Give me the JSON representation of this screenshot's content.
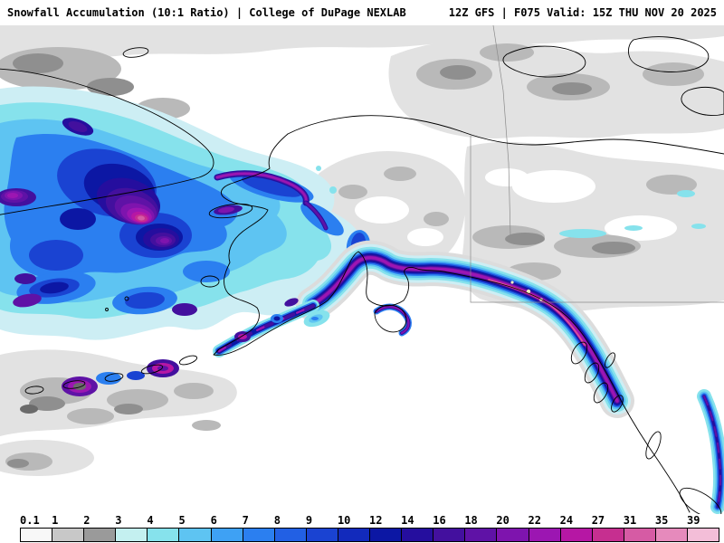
{
  "header": {
    "left": "Snowfall Accumulation (10:1 Ratio) | College of DuPage NEXLAB",
    "right": "12Z GFS | F075 Valid: 15Z THU NOV 20 2025"
  },
  "chart_data": {
    "type": "heatmap",
    "title": "Snowfall Accumulation (10:1 Ratio)",
    "source": "College of DuPage NEXLAB",
    "model_run": "12Z GFS",
    "forecast_hour": "F075",
    "valid_time": "15Z THU NOV 20 2025",
    "region": "Alaska, Bering Sea, Gulf of Alaska, western Canada",
    "legend_position": "bottom",
    "colorbar_values": [
      "0.1",
      "1",
      "2",
      "3",
      "4",
      "5",
      "6",
      "7",
      "8",
      "9",
      "10",
      "12",
      "14",
      "16",
      "18",
      "20",
      "22",
      "24",
      "27",
      "31",
      "35",
      "39"
    ]
  },
  "colorbar": {
    "stops": [
      {
        "label": "0.1",
        "color": "#f8f8f8"
      },
      {
        "label": "1",
        "color": "#c8c8c8"
      },
      {
        "label": "2",
        "color": "#9a9a9a"
      },
      {
        "label": "3",
        "color": "#c4f0f0"
      },
      {
        "label": "4",
        "color": "#86e2ec"
      },
      {
        "label": "5",
        "color": "#5ec4f2"
      },
      {
        "label": "6",
        "color": "#3ea1f4"
      },
      {
        "label": "7",
        "color": "#2b7ff0"
      },
      {
        "label": "8",
        "color": "#2260e4"
      },
      {
        "label": "9",
        "color": "#1a43d2"
      },
      {
        "label": "10",
        "color": "#122abc"
      },
      {
        "label": "12",
        "color": "#0c17a4"
      },
      {
        "label": "14",
        "color": "#250e9e"
      },
      {
        "label": "16",
        "color": "#43109e"
      },
      {
        "label": "18",
        "color": "#5f12a6"
      },
      {
        "label": "20",
        "color": "#7e14ae"
      },
      {
        "label": "22",
        "color": "#9c16b2"
      },
      {
        "label": "24",
        "color": "#b617a4"
      },
      {
        "label": "27",
        "color": "#c62f90"
      },
      {
        "label": "31",
        "color": "#d65ba4"
      },
      {
        "label": "35",
        "color": "#e68abc"
      },
      {
        "label": "39",
        "color": "#f3bed8"
      }
    ]
  }
}
